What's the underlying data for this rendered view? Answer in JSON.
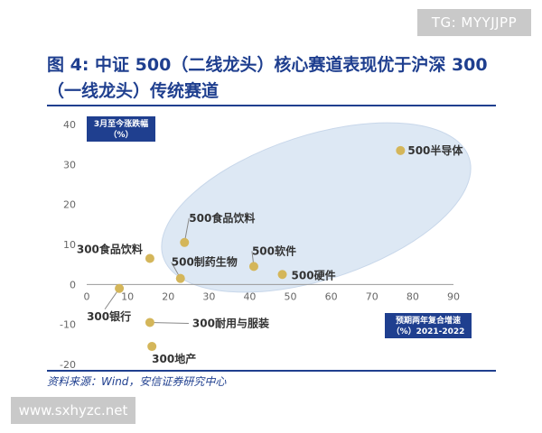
{
  "watermarks": {
    "top": "TG: MYYJJPP",
    "bottom": "www.sxhyzc.net"
  },
  "figure": {
    "title": "图 4: 中证 500（二线龙头）核心赛道表现优于沪深 300（一线龙头）传统赛道",
    "source": "资料来源：Wind，安信证券研究中心"
  },
  "chart_data": {
    "type": "scatter",
    "ylabel_lines": [
      "3月至今涨跌幅",
      "（%）"
    ],
    "xlabel_lines": [
      "预期两年复合增速",
      "（%）2021-2022"
    ],
    "xlim": [
      0,
      90
    ],
    "ylim": [
      -20,
      40
    ],
    "x_ticks": [
      0,
      10,
      20,
      30,
      40,
      50,
      60,
      70,
      80,
      90
    ],
    "y_ticks": [
      -20,
      -10,
      0,
      10,
      20,
      30,
      40
    ],
    "x_tick_labels": [
      "0",
      "10",
      "20",
      "30",
      "40",
      "50",
      "60",
      "70",
      "80",
      "90"
    ],
    "y_tick_labels": [
      "-20",
      "-10",
      "0",
      "10",
      "20",
      "30",
      "40"
    ],
    "grid": false,
    "point_color": "#d4b65a",
    "highlight_color": "#dde8f4",
    "points": [
      {
        "label": "500半导体",
        "x": 77,
        "y": 33.5
      },
      {
        "label": "500食品饮料",
        "x": 24,
        "y": 10.5
      },
      {
        "label": "300食品饮料",
        "x": 15.5,
        "y": 6.5
      },
      {
        "label": "500软件",
        "x": 41,
        "y": 4.5
      },
      {
        "label": "500制药生物",
        "x": 23,
        "y": 1.5
      },
      {
        "label": "500硬件",
        "x": 48,
        "y": 2.5
      },
      {
        "label": "300银行",
        "x": 8,
        "y": -1
      },
      {
        "label": "300耐用与服装",
        "x": 15.5,
        "y": -9.5
      },
      {
        "label": "300地产",
        "x": 16,
        "y": -15.5
      }
    ]
  }
}
